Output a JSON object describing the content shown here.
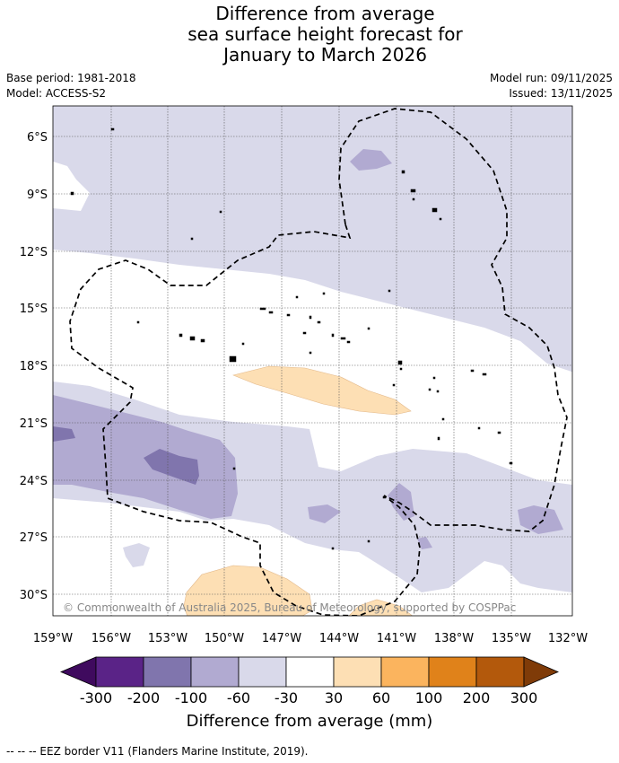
{
  "title": {
    "line1": "Difference from average",
    "line2": "sea surface height forecast for",
    "line3": "January to March 2026"
  },
  "meta": {
    "base_period": "Base period: 1981-2018",
    "model": "Model: ACCESS-S2",
    "model_run": "Model run: 09/11/2025",
    "issued": "Issued: 13/11/2025"
  },
  "map": {
    "lat_labels": [
      "6°S",
      "9°S",
      "12°S",
      "15°S",
      "18°S",
      "21°S",
      "24°S",
      "27°S",
      "30°S"
    ],
    "lon_labels": [
      "159°W",
      "156°W",
      "153°W",
      "150°W",
      "147°W",
      "144°W",
      "141°W",
      "138°W",
      "135°W",
      "132°W"
    ],
    "copyright": "© Commonwealth of Australia 2025, Bureau of Meteorology, supported by COSPPac"
  },
  "colorbar": {
    "title": "Difference from average (mm)",
    "labels": [
      "-300",
      "-200",
      "-100",
      "-60",
      "-30",
      "30",
      "60",
      "100",
      "200",
      "300"
    ],
    "colors": [
      "#3f0a5e",
      "#5a2387",
      "#8075ad",
      "#b1aad1",
      "#d9d9ea",
      "#ffffff",
      "#fddfb4",
      "#fbb45e",
      "#e0821a",
      "#b3590c",
      "#7f3b08"
    ]
  },
  "footnote": "--  --  -- EEZ border V11 (Flanders Marine Institute, 2019)."
}
